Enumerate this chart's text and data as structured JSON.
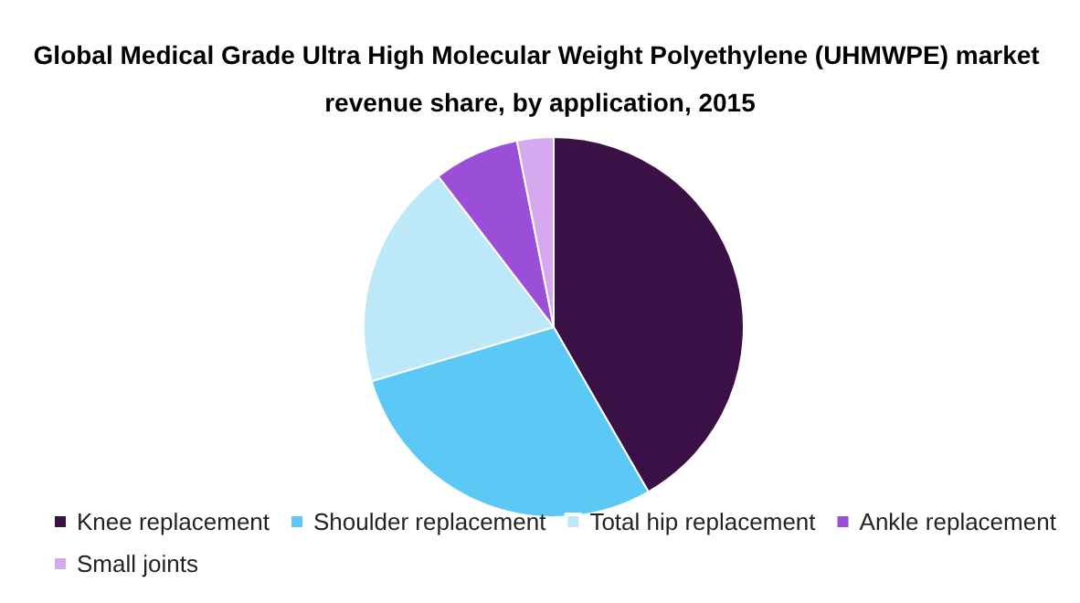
{
  "chart_data": {
    "type": "pie",
    "title": "Global Medical Grade Ultra High Molecular Weight Polyethylene (UHMWPE) market revenue share, by application, 2015",
    "categories": [
      "Knee replacement",
      "Shoulder replacement",
      "Total hip replacement",
      "Ankle replacement",
      "Small joints"
    ],
    "values": [
      41.7,
      28.7,
      19.2,
      7.3,
      3.1
    ],
    "colors": [
      "#3a1046",
      "#5bc8f5",
      "#bde8f8",
      "#9b4fd8",
      "#d6a8ef"
    ],
    "legend": "bottom"
  }
}
